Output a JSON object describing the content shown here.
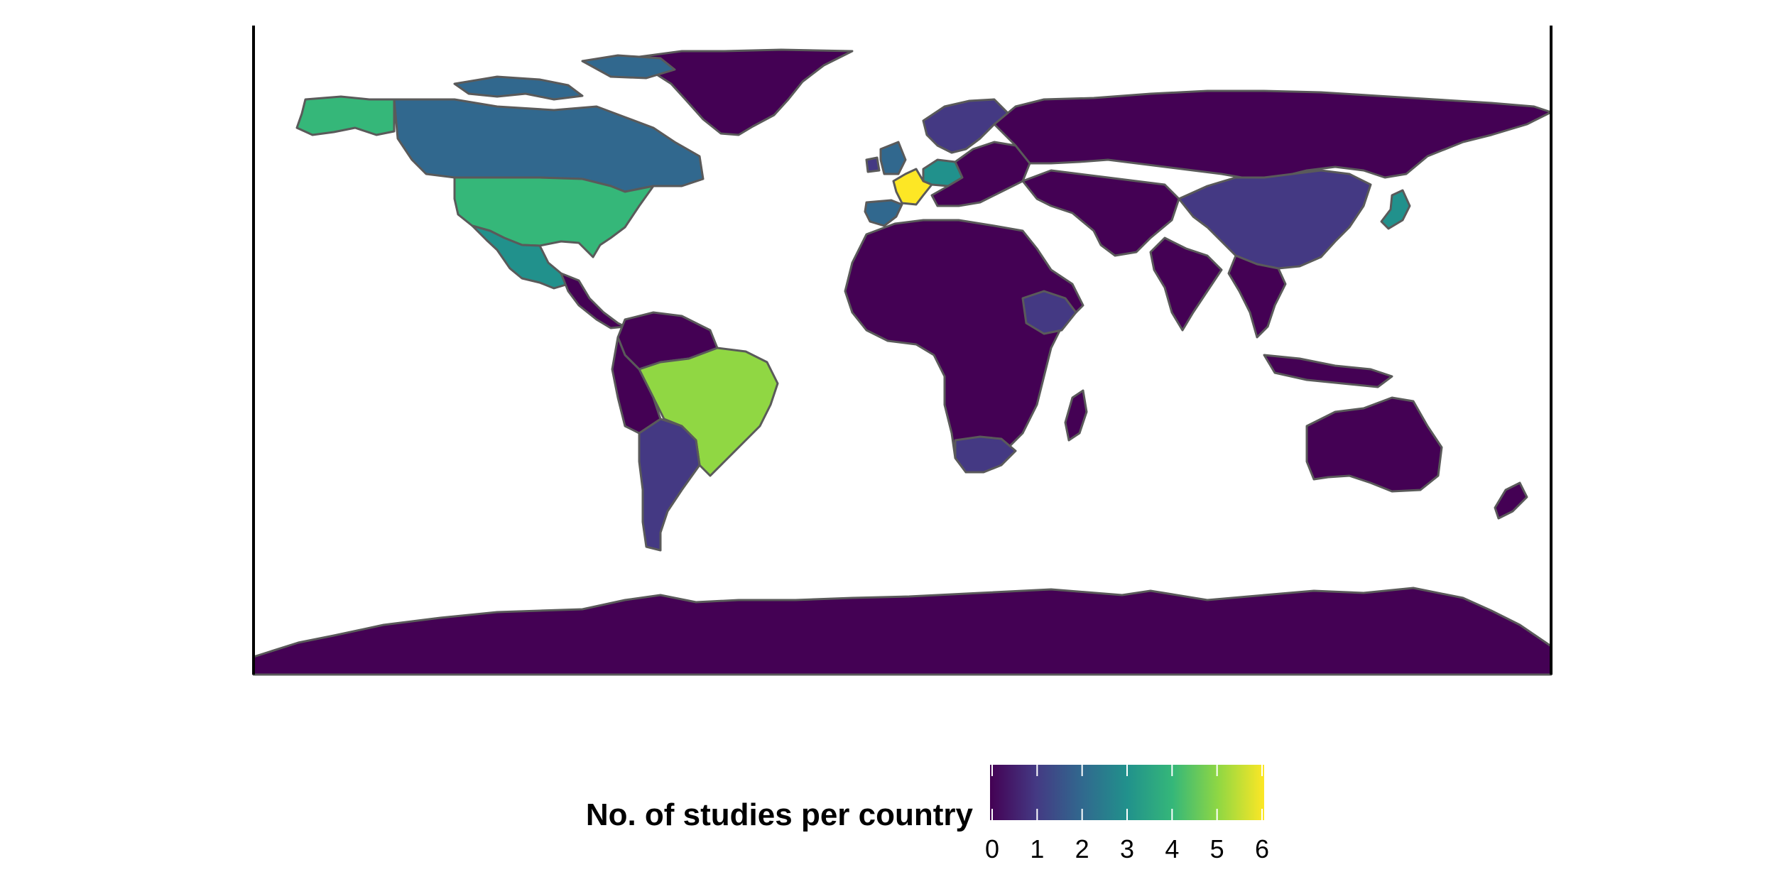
{
  "legend": {
    "title": "No. of studies per country",
    "ticks": [
      "0",
      "1",
      "2",
      "3",
      "4",
      "5",
      "6"
    ],
    "min": 0,
    "max": 6,
    "colors": [
      "#440154",
      "#443983",
      "#31688e",
      "#21918c",
      "#35b779",
      "#90d743",
      "#fde725"
    ]
  },
  "map": {
    "border_color": "#5a5a5a",
    "countries": [
      {
        "id": "canada",
        "value": 2
      },
      {
        "id": "usa",
        "value": 4
      },
      {
        "id": "alaska",
        "value": 4
      },
      {
        "id": "mexico",
        "value": 3
      },
      {
        "id": "greenland",
        "value": 0
      },
      {
        "id": "central-america",
        "value": 0
      },
      {
        "id": "northern-south-america",
        "value": 0
      },
      {
        "id": "brazil",
        "value": 5
      },
      {
        "id": "argentina",
        "value": 1
      },
      {
        "id": "andes",
        "value": 0
      },
      {
        "id": "uk",
        "value": 2
      },
      {
        "id": "ireland",
        "value": 1
      },
      {
        "id": "france",
        "value": 6
      },
      {
        "id": "spain",
        "value": 2
      },
      {
        "id": "germany",
        "value": 3
      },
      {
        "id": "scandinavia",
        "value": 1
      },
      {
        "id": "eastern-europe",
        "value": 0
      },
      {
        "id": "russia",
        "value": 0
      },
      {
        "id": "middle-east-central-asia",
        "value": 0
      },
      {
        "id": "china",
        "value": 1
      },
      {
        "id": "japan",
        "value": 3
      },
      {
        "id": "india",
        "value": 0
      },
      {
        "id": "southeast-asia",
        "value": 0
      },
      {
        "id": "africa",
        "value": 0
      },
      {
        "id": "ethiopia",
        "value": 1
      },
      {
        "id": "south-africa",
        "value": 1
      },
      {
        "id": "madagascar",
        "value": 0
      },
      {
        "id": "australia",
        "value": 0
      },
      {
        "id": "new-zealand",
        "value": 0
      },
      {
        "id": "indonesia",
        "value": 0
      },
      {
        "id": "antarctica",
        "value": 0
      },
      {
        "id": "arctic-islands",
        "value": 2
      }
    ]
  }
}
